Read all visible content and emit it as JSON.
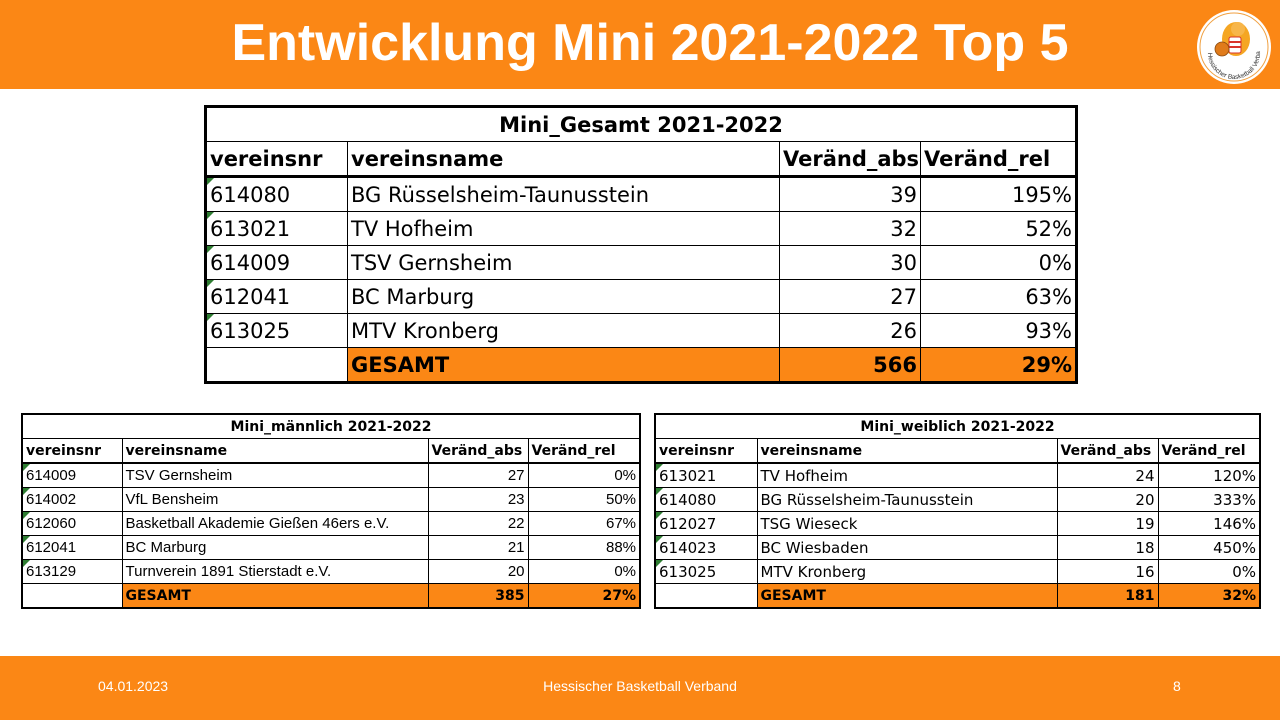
{
  "header": {
    "title": "Entwicklung Mini 2021-2022 Top 5"
  },
  "logo": {
    "icon": "hbv-lion-logo-icon",
    "text": "Hessischer Basketball Verband"
  },
  "main_table": {
    "caption": "Mini_Gesamt 2021-2022",
    "headers": [
      "vereinsnr",
      "vereinsname",
      "Veränd_abs",
      "Veränd_rel"
    ],
    "rows": [
      [
        "614080",
        "BG Rüsselsheim-Taunusstein",
        "39",
        "195%"
      ],
      [
        "613021",
        "TV Hofheim",
        "32",
        "52%"
      ],
      [
        "614009",
        "TSV Gernsheim",
        "30",
        "0%"
      ],
      [
        "612041",
        "BC Marburg",
        "27",
        "63%"
      ],
      [
        "613025",
        "MTV Kronberg",
        "26",
        "93%"
      ]
    ],
    "total": {
      "label": "GESAMT",
      "abs": "566",
      "rel": "29%"
    }
  },
  "male_table": {
    "caption": "Mini_männlich 2021-2022",
    "headers": [
      "vereinsnr",
      "vereinsname",
      "Veränd_abs",
      "Veränd_rel"
    ],
    "rows": [
      [
        "614009",
        "TSV Gernsheim",
        "27",
        "0%"
      ],
      [
        "614002",
        "VfL Bensheim",
        "23",
        "50%"
      ],
      [
        "612060",
        "Basketball Akademie Gießen 46ers e.V.",
        "22",
        "67%"
      ],
      [
        "612041",
        "BC Marburg",
        "21",
        "88%"
      ],
      [
        "613129",
        "Turnverein 1891 Stierstadt e.V.",
        "20",
        "0%"
      ]
    ],
    "total": {
      "label": "GESAMT",
      "abs": "385",
      "rel": "27%"
    }
  },
  "female_table": {
    "caption": "Mini_weiblich 2021-2022",
    "headers": [
      "vereinsnr",
      "vereinsname",
      "Veränd_abs",
      "Veränd_rel"
    ],
    "rows": [
      [
        "613021",
        "TV Hofheim",
        "24",
        "120%"
      ],
      [
        "614080",
        "BG Rüsselsheim-Taunusstein",
        "20",
        "333%"
      ],
      [
        "612027",
        "TSG Wieseck",
        "19",
        "146%"
      ],
      [
        "614023",
        "BC Wiesbaden",
        "18",
        "450%"
      ],
      [
        "613025",
        "MTV Kronberg",
        "16",
        "0%"
      ]
    ],
    "total": {
      "label": "GESAMT",
      "abs": "181",
      "rel": "32%"
    }
  },
  "footer": {
    "date": "04.01.2023",
    "organization": "Hessischer Basketball Verband",
    "page": "8"
  },
  "colors": {
    "accent": "#fb8715",
    "marker": "#2e7d32"
  }
}
